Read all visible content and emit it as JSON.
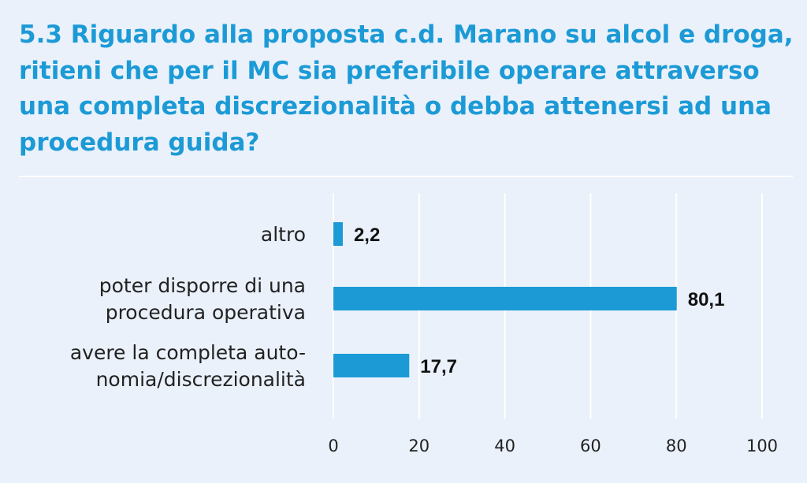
{
  "chart_data": {
    "type": "bar",
    "orientation": "horizontal",
    "title": "5.3 Riguardo alla proposta c.d. Marano su alcol e droga, ritieni che per il MC sia preferibile operare attraverso una completa discrezionalità o debba attenersi ad una procedura guida?",
    "categories": [
      [
        "altro"
      ],
      [
        "poter disporre di una",
        "procedura operativa"
      ],
      [
        "avere la completa auto-",
        "nomia/discrezionalità"
      ]
    ],
    "values": [
      2.2,
      80.1,
      17.7
    ],
    "value_labels": [
      "2,2",
      "80,1",
      "17,7"
    ],
    "xlim": [
      0,
      100
    ],
    "xticks": [
      0,
      20,
      40,
      60,
      80,
      100
    ],
    "grid": true,
    "bar_color": "#1c9ad6",
    "title_color": "#1c9ad6",
    "background_color": "#eaf1fa"
  }
}
